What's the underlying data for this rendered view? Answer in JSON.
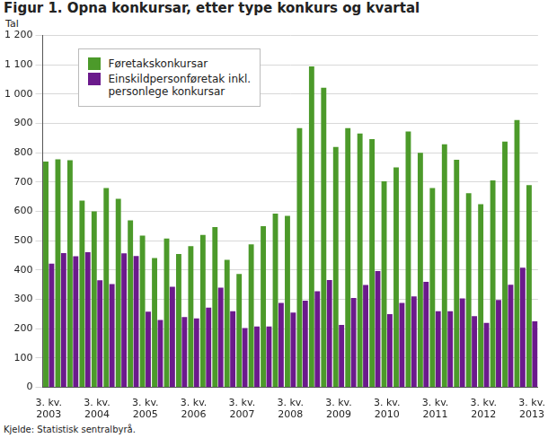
{
  "chart_data": {
    "type": "bar",
    "title": "Figur 1. Opna konkursar, etter type konkurs og kvartal",
    "y_label": "Tal",
    "source": "Kjelde: Statistisk sentralbyrå.",
    "categories": [
      "3. kv.\n2003",
      null,
      null,
      null,
      "3. kv.\n2004",
      null,
      null,
      null,
      "3. kv.\n2005",
      null,
      null,
      null,
      "3. kv.\n2006",
      null,
      null,
      null,
      "3. kv.\n2007",
      null,
      null,
      null,
      "3. kv.\n2008",
      null,
      null,
      null,
      "3. kv.\n2009",
      null,
      null,
      null,
      "3. kv.\n2010",
      null,
      null,
      null,
      "3. kv.\n2011",
      null,
      null,
      null,
      "3. kv.\n2012",
      null,
      null,
      null,
      "3. kv.\n2013"
    ],
    "series": [
      {
        "name": "Føretakskonkursar",
        "color": "#4c9a2a",
        "values": [
          770,
          778,
          775,
          637,
          600,
          680,
          643,
          570,
          518,
          441,
          508,
          455,
          482,
          520,
          547,
          435,
          387,
          488,
          550,
          593,
          585,
          884,
          1095,
          1022,
          820,
          884,
          866,
          847,
          703,
          750,
          873,
          800,
          680,
          829,
          776,
          662,
          625,
          706,
          838,
          912,
          690
        ]
      },
      {
        "name": "Einskildpersonføretak inkl.\npersonlege konkursar",
        "color": "#6b1a8c",
        "values": [
          422,
          458,
          447,
          461,
          365,
          352,
          457,
          448,
          258,
          230,
          343,
          240,
          235,
          272,
          340,
          260,
          202,
          208,
          208,
          288,
          255,
          296,
          328,
          366,
          213,
          305,
          349,
          397,
          250,
          288,
          310,
          360,
          260,
          260,
          303,
          243,
          220,
          298,
          350,
          408,
          225
        ]
      }
    ],
    "ylim": [
      0,
      1200
    ],
    "yticks": [
      0,
      100,
      200,
      300,
      400,
      500,
      600,
      700,
      800,
      900,
      {
        "value": 1000,
        "label": "1 000"
      },
      {
        "value": 1100,
        "label": "1 100"
      },
      {
        "value": 1200,
        "label": "1 200"
      }
    ],
    "grid": true,
    "legend": "upper left"
  }
}
